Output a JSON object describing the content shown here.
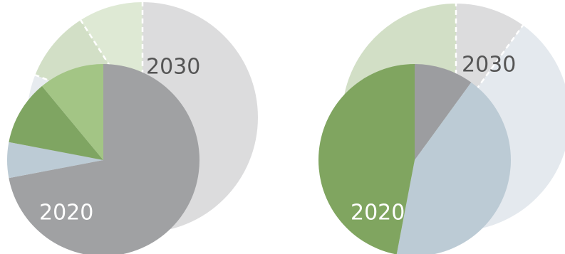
{
  "chart_data": [
    {
      "type": "pie",
      "series": [
        {
          "name": "2030",
          "colors": [
            "#dcdcdd",
            "#e7ebef",
            "#d2dfc6",
            "#dee9d4"
          ],
          "values": [
            75,
            6,
            10,
            9
          ]
        },
        {
          "name": "2020",
          "colors": [
            "#a0a1a3",
            "#bccbd5",
            "#7fa562",
            "#a3c585"
          ],
          "values": [
            72,
            6,
            11,
            11
          ]
        }
      ]
    },
    {
      "type": "pie",
      "series": [
        {
          "name": "2030",
          "colors": [
            "#dcdcdd",
            "#e4e9ee",
            "#d2dfc6"
          ],
          "values": [
            10,
            53,
            37
          ]
        },
        {
          "name": "2020",
          "colors": [
            "#9c9da0",
            "#bccbd5",
            "#80a560"
          ],
          "values": [
            10,
            43,
            47
          ]
        }
      ]
    }
  ]
}
